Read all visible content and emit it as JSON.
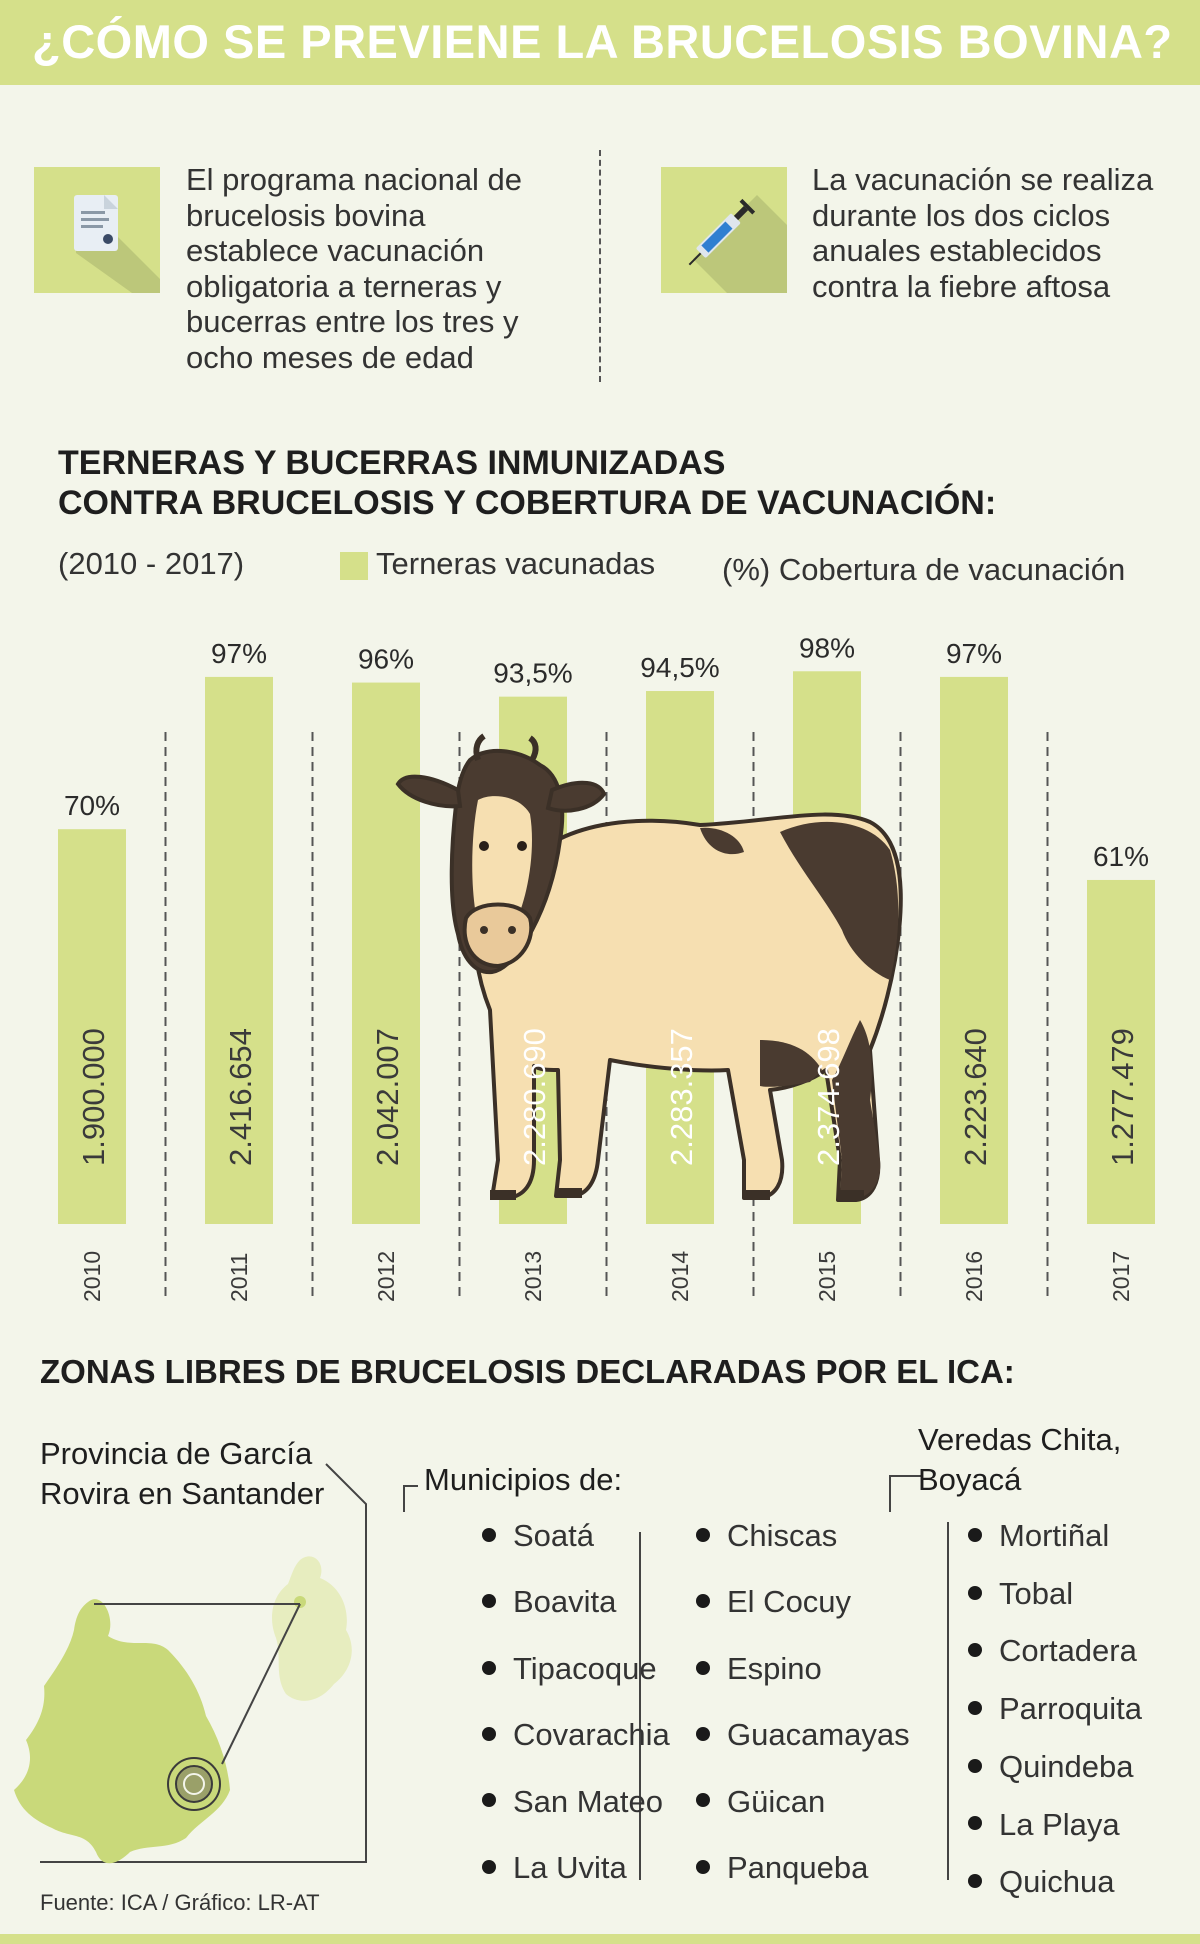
{
  "header": {
    "title": "¿CÓMO SE PREVIENE LA BRUCELOSIS BOVINA?"
  },
  "intro": {
    "left_icon": "document-seal-icon",
    "left_text": "El programa nacional de brucelosis bovina establece vacunación obligatoria a terneras y bucerras entre los tres y ocho meses de edad",
    "right_icon": "syringe-icon",
    "right_text": "La vacunación se realiza durante los dos ciclos anuales establecidos contra la fiebre aftosa"
  },
  "chart_section": {
    "title_line1": "TERNERAS Y BUCERRAS INMUNIZADAS",
    "title_line2": "CONTRA BRUCELOSIS Y COBERTURA DE VACUNACIÓN:",
    "period": "(2010 - 2017)"
  },
  "chart_data": {
    "type": "bar",
    "categories": [
      "2010",
      "2011",
      "2012",
      "2013",
      "2014",
      "2015",
      "2016",
      "2017"
    ],
    "series": [
      {
        "name": "Terneras vacunadas",
        "values": [
          1900000,
          2416654,
          2042007,
          2280690,
          2283357,
          2374698,
          2223640,
          1277479
        ],
        "labels": [
          "1.900.000",
          "2.416.654",
          "2.042.007",
          "2.280.690",
          "2.283.357",
          "2.374.698",
          "2.223.640",
          "1.277.479"
        ]
      },
      {
        "name": "(%) Cobertura de vacunación",
        "values": [
          70,
          97,
          96,
          93.5,
          94.5,
          98,
          97,
          61
        ],
        "labels": [
          "70%",
          "97%",
          "96%",
          "93,5%",
          "94,5%",
          "98%",
          "97%",
          "61%"
        ]
      }
    ],
    "bar_height_encodes": "(%) Cobertura de vacunación",
    "ylim": [
      0,
      100
    ],
    "grid": false,
    "legend_position": "top",
    "colors": {
      "bar": "#d5e08a",
      "divider": "#555555"
    },
    "illustration": "cow-illustration"
  },
  "zones": {
    "title": "ZONAS LIBRES DE BRUCELOSIS DECLARADAS POR EL ICA:",
    "province_line1": "Provincia de García",
    "province_line2": "Rovira en Santander",
    "municipios_heading": "Municipios de:",
    "municipios_col1": [
      "Soatá",
      "Boavita",
      "Tipacoque",
      "Covarachia",
      "San Mateo",
      "La Uvita"
    ],
    "municipios_col2": [
      "Chiscas",
      "El Cocuy",
      "Espino",
      "Guacamayas",
      "Güican",
      "Panqueba"
    ],
    "veredas_line1": "Veredas Chita,",
    "veredas_line2": "Boyacá",
    "veredas": [
      "Mortiñal",
      "Tobal",
      "Cortadera",
      "Parroquita",
      "Quindeba",
      "La Playa",
      "Quichua"
    ]
  },
  "source": "Fuente: ICA / Gráfico: LR-AT",
  "colors": {
    "accent": "#d5e08a",
    "background": "#f3f5ea",
    "text": "#2b2b2b"
  }
}
